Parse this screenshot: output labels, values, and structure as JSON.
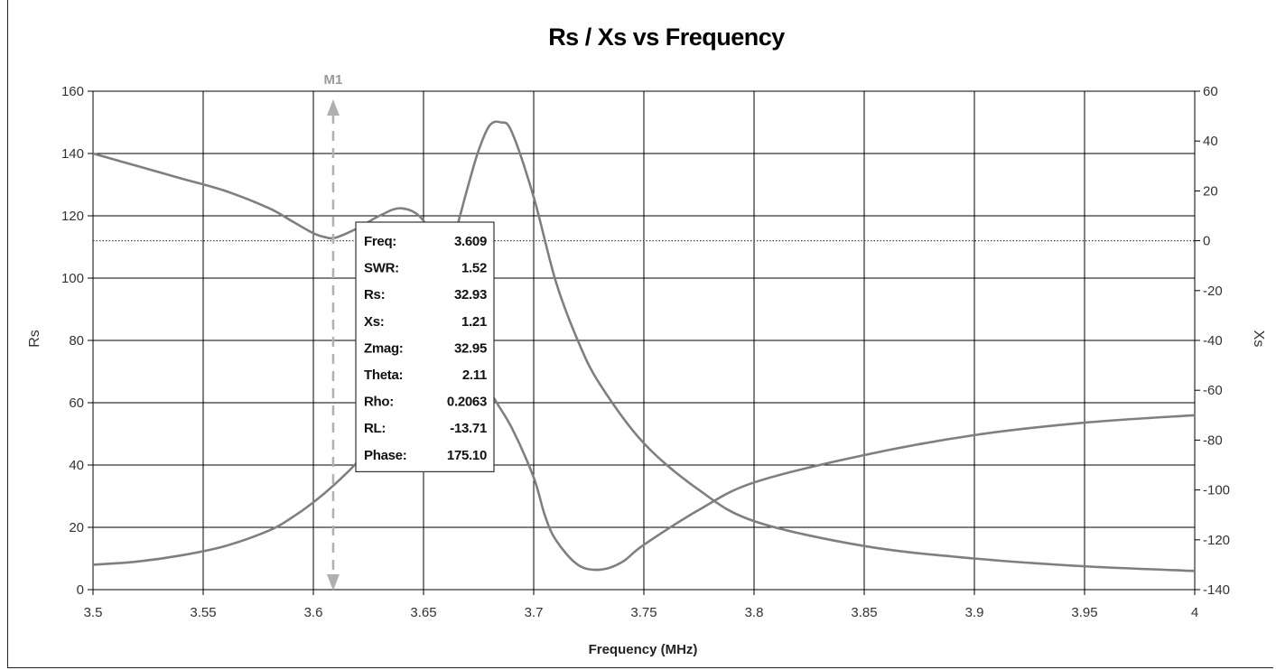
{
  "chart_data": {
    "type": "line",
    "title": "Rs / Xs vs Frequency",
    "xlabel": "Frequency (MHz)",
    "ylabel_left": "Rs",
    "ylabel_right": "Xs",
    "xlim": [
      3.5,
      4.0
    ],
    "ylim_left": [
      0,
      160
    ],
    "ylim_right": [
      -140,
      60
    ],
    "grid": true,
    "x_ticks": [
      "3.5",
      "3.55",
      "3.6",
      "3.65",
      "3.7",
      "3.75",
      "3.8",
      "3.85",
      "3.9",
      "3.95",
      "4"
    ],
    "y_ticks_left": [
      "0",
      "20",
      "40",
      "60",
      "80",
      "100",
      "120",
      "140",
      "160"
    ],
    "y_ticks_right": [
      "-140",
      "-120",
      "-100",
      "-80",
      "-60",
      "-40",
      "-20",
      "0",
      "20",
      "40",
      "60"
    ],
    "series": [
      {
        "name": "Rs",
        "axis": "left",
        "x": [
          3.5,
          3.52,
          3.54,
          3.56,
          3.58,
          3.59,
          3.6,
          3.61,
          3.62,
          3.63,
          3.64,
          3.65,
          3.66,
          3.67,
          3.675,
          3.68,
          3.685,
          3.69,
          3.7,
          3.71,
          3.72,
          3.73,
          3.75,
          3.775,
          3.8,
          3.85,
          3.9,
          3.95,
          4.0
        ],
        "values": [
          8,
          9,
          11,
          14,
          19,
          23,
          28,
          34,
          41,
          50,
          62,
          80,
          103,
          129,
          141,
          149,
          150,
          147,
          126,
          99,
          80,
          66,
          47,
          32,
          22,
          14,
          10,
          7.5,
          6
        ]
      },
      {
        "name": "Xs",
        "axis": "right",
        "x": [
          3.5,
          3.52,
          3.54,
          3.56,
          3.58,
          3.59,
          3.6,
          3.605,
          3.61,
          3.62,
          3.63,
          3.64,
          3.65,
          3.66,
          3.67,
          3.68,
          3.69,
          3.7,
          3.705,
          3.71,
          3.72,
          3.73,
          3.74,
          3.75,
          3.775,
          3.8,
          3.85,
          3.9,
          3.95,
          4.0
        ],
        "values": [
          35,
          30,
          25,
          20,
          13,
          8,
          3,
          1.5,
          1.21,
          5,
          10,
          13,
          8,
          -10,
          -40,
          -60,
          -75,
          -95,
          -110,
          -120,
          -130,
          -132,
          -129,
          -122,
          -108,
          -97,
          -86,
          -78,
          -73,
          -70
        ]
      }
    ],
    "marker": {
      "name": "M1",
      "x": 3.609,
      "readout": [
        {
          "label": "Freq:",
          "value": "3.609"
        },
        {
          "label": "SWR:",
          "value": "1.52"
        },
        {
          "label": "Rs:",
          "value": "32.93"
        },
        {
          "label": "Xs:",
          "value": "1.21"
        },
        {
          "label": "Zmag:",
          "value": "32.95"
        },
        {
          "label": "Theta:",
          "value": "2.11"
        },
        {
          "label": "Rho:",
          "value": "0.2063"
        },
        {
          "label": "RL:",
          "value": "-13.71"
        },
        {
          "label": "Phase:",
          "value": "175.10"
        }
      ]
    },
    "colors": {
      "lines": "#7f7f7f",
      "grid": "#000000",
      "marker": "#b0b0b0"
    }
  }
}
